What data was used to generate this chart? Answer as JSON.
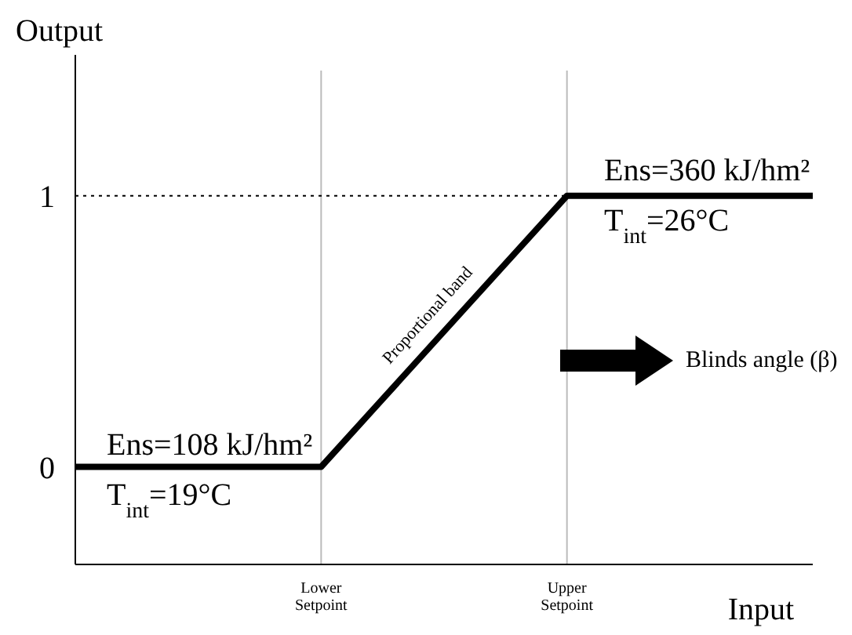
{
  "chart_data": {
    "type": "line",
    "xlabel": "Input",
    "ylabel": "Output",
    "categories": [
      null,
      "Lower Setpoint",
      "Upper Setpoint",
      null
    ],
    "series": [
      {
        "color": "#000000",
        "values": [
          0,
          0,
          1,
          1
        ]
      }
    ],
    "ylim": [
      -0.36,
      1.52
    ],
    "yticks": [
      0,
      1
    ],
    "grid": "x",
    "ref_lines": [
      {
        "axis": "y",
        "value": 1,
        "line_style": "dotted",
        "color": "#000000"
      }
    ],
    "annotations": [
      "Ens=108 kJ/hm²",
      "T$_{int}$=19°C",
      "Ens=360 kJ/hm²",
      "T$_{int}$=26°C",
      "Proportional band",
      "Blinds angle (β)"
    ]
  }
}
